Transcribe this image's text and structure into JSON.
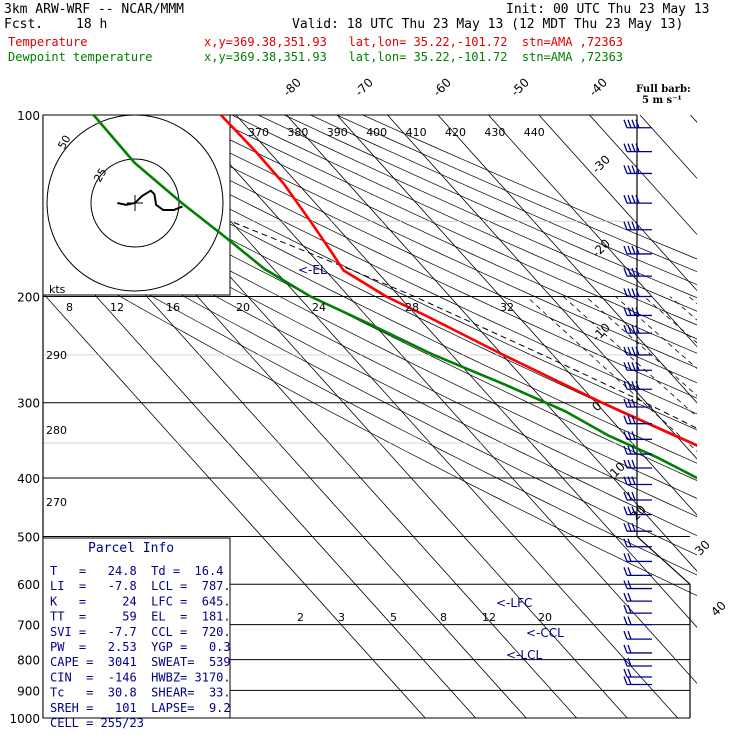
{
  "header": {
    "model": "3km ARW-WRF -- NCAR/MMM",
    "init": "Init: 00 UTC Thu 23 May 13",
    "fcst_label": "Fcst.",
    "fcst_value": "18 h",
    "valid": "Valid: 18 UTC Thu 23 May 13 (12 MDT Thu 23 May 13)",
    "temp_label": "Temperature",
    "temp_info": "x,y=369.38,351.93   lat,lon= 35.22,-101.72  stn=AMA ,72363",
    "dew_label": "Dewpoint temperature",
    "dew_info": "x,y=369.38,351.93   lat,lon= 35.22,-101.72  stn=AMA ,72363"
  },
  "barb_legend": {
    "title": "Full barb:",
    "value": "5 m s⁻¹"
  },
  "hodograph": {
    "units_label": "kts",
    "rings": [
      "25",
      "50"
    ]
  },
  "annotations": {
    "el": "<-EL",
    "lfc": "<-LFC",
    "ccl": "<-CCL",
    "lcl": "<-LCL"
  },
  "parcel_info": {
    "title": "Parcel Info",
    "rows": [
      "T   =   24.8  Td =  16.4",
      "LI  =   -7.8  LCL =  787.",
      "K   =     24  LFC =  645.",
      "TT  =     59  EL  =  181.",
      "SVI =   -7.7  CCL =  720.",
      "PW  =   2.53  YGP =   0.3",
      "CAPE =  3041  SWEAT=  539",
      "CIN  =  -146  HWBZ= 3170.",
      "Tc   =  30.8  SHEAR=  33.",
      "SREH =   101  LAPSE=  9.2",
      "CELL = 255/23"
    ]
  },
  "chart_data": {
    "type": "line",
    "title": "",
    "xlabel": "",
    "ylabel": "",
    "y_scale": "log pressure (hPa)",
    "pressure_ticks": [
      100,
      200,
      300,
      400,
      500,
      600,
      700,
      800,
      900,
      1000
    ],
    "isotherm_labels": [
      -80,
      -70,
      -60,
      -50,
      -40,
      -30,
      -20,
      -10,
      0,
      10,
      20,
      30,
      40
    ],
    "theta_labels_top": [
      370,
      380,
      390,
      400,
      410,
      420,
      430,
      440
    ],
    "theta_labels_left": [
      290,
      280,
      270
    ],
    "mixing_ratio_labels_top": [
      8,
      12,
      16,
      20,
      24,
      28,
      32
    ],
    "mixing_ratio_labels_low": [
      2,
      3,
      5,
      8,
      12,
      20
    ],
    "series": [
      {
        "name": "Temperature",
        "color": "#ff0000",
        "points": [
          {
            "p": 890,
            "t": 24.8
          },
          {
            "p": 860,
            "t": 21.4
          },
          {
            "p": 820,
            "t": 18.6
          },
          {
            "p": 787,
            "t": 17.4
          },
          {
            "p": 770,
            "t": 15.2
          },
          {
            "p": 755,
            "t": 17.4
          },
          {
            "p": 720,
            "t": 15.4
          },
          {
            "p": 690,
            "t": 13.6
          },
          {
            "p": 645,
            "t": 10.4
          },
          {
            "p": 600,
            "t": 6.2
          },
          {
            "p": 550,
            "t": 0.6
          },
          {
            "p": 500,
            "t": -4.6
          },
          {
            "p": 450,
            "t": -11.8
          },
          {
            "p": 400,
            "t": -19.4
          },
          {
            "p": 350,
            "t": -28.2
          },
          {
            "p": 300,
            "t": -38.8
          },
          {
            "p": 250,
            "t": -49.8
          },
          {
            "p": 215,
            "t": -58.2
          },
          {
            "p": 200,
            "t": -62.6
          },
          {
            "p": 181,
            "t": -66.4
          },
          {
            "p": 170,
            "t": -65.6
          },
          {
            "p": 150,
            "t": -64.2
          },
          {
            "p": 130,
            "t": -62.8
          },
          {
            "p": 115,
            "t": -62.6
          },
          {
            "p": 100,
            "t": -63.0
          }
        ]
      },
      {
        "name": "Dewpoint temperature",
        "color": "#008000",
        "points": [
          {
            "p": 890,
            "t": 16.4
          },
          {
            "p": 860,
            "t": 15.6
          },
          {
            "p": 820,
            "t": 15.2
          },
          {
            "p": 800,
            "t": 13.8
          },
          {
            "p": 790,
            "t": 11.0
          },
          {
            "p": 765,
            "t": 7.4
          },
          {
            "p": 740,
            "t": -4.6
          },
          {
            "p": 700,
            "t": -21.4
          },
          {
            "p": 650,
            "t": -22.0
          },
          {
            "p": 600,
            "t": -24.4
          },
          {
            "p": 550,
            "t": -26.6
          },
          {
            "p": 500,
            "t": -29.8
          },
          {
            "p": 450,
            "t": -32.6
          },
          {
            "p": 400,
            "t": -33.4
          },
          {
            "p": 370,
            "t": -37.6
          },
          {
            "p": 340,
            "t": -43.4
          },
          {
            "p": 310,
            "t": -47.6
          },
          {
            "p": 280,
            "t": -54.8
          },
          {
            "p": 250,
            "t": -63.6
          },
          {
            "p": 220,
            "t": -71.4
          },
          {
            "p": 200,
            "t": -77.6
          },
          {
            "p": 180,
            "t": -81.8
          },
          {
            "p": 160,
            "t": -83.8
          },
          {
            "p": 140,
            "t": -86.4
          },
          {
            "p": 120,
            "t": -88.6
          },
          {
            "p": 100,
            "t": -88.2
          }
        ]
      }
    ],
    "parcel_trace": {
      "name": "",
      "points": [
        {
          "p": 890,
          "t": 24.8
        },
        {
          "p": 787,
          "t": 13.8
        },
        {
          "p": 700,
          "t": 10.0
        },
        {
          "p": 600,
          "t": 4.6
        },
        {
          "p": 500,
          "t": -3.0
        },
        {
          "p": 400,
          "t": -13.6
        },
        {
          "p": 300,
          "t": -30.2
        },
        {
          "p": 250,
          "t": -42.0
        },
        {
          "p": 200,
          "t": -57.0
        },
        {
          "p": 181,
          "t": -64.6
        },
        {
          "p": 150,
          "t": -80.0
        }
      ]
    },
    "hodograph_trace": [
      [
        -10,
        0
      ],
      [
        -5,
        -1
      ],
      [
        0,
        0
      ],
      [
        4,
        4
      ],
      [
        9,
        7
      ],
      [
        11,
        5
      ],
      [
        12,
        -1
      ],
      [
        16,
        -4
      ],
      [
        22,
        -4
      ],
      [
        27,
        -2
      ]
    ],
    "wind_barbs_pressure": [
      105,
      115,
      125,
      140,
      155,
      170,
      185,
      200,
      215,
      230,
      250,
      265,
      285,
      305,
      325,
      345,
      365,
      385,
      410,
      435,
      460,
      490,
      520,
      550,
      580,
      610,
      640,
      670,
      700,
      740,
      780,
      820,
      855,
      880
    ]
  }
}
